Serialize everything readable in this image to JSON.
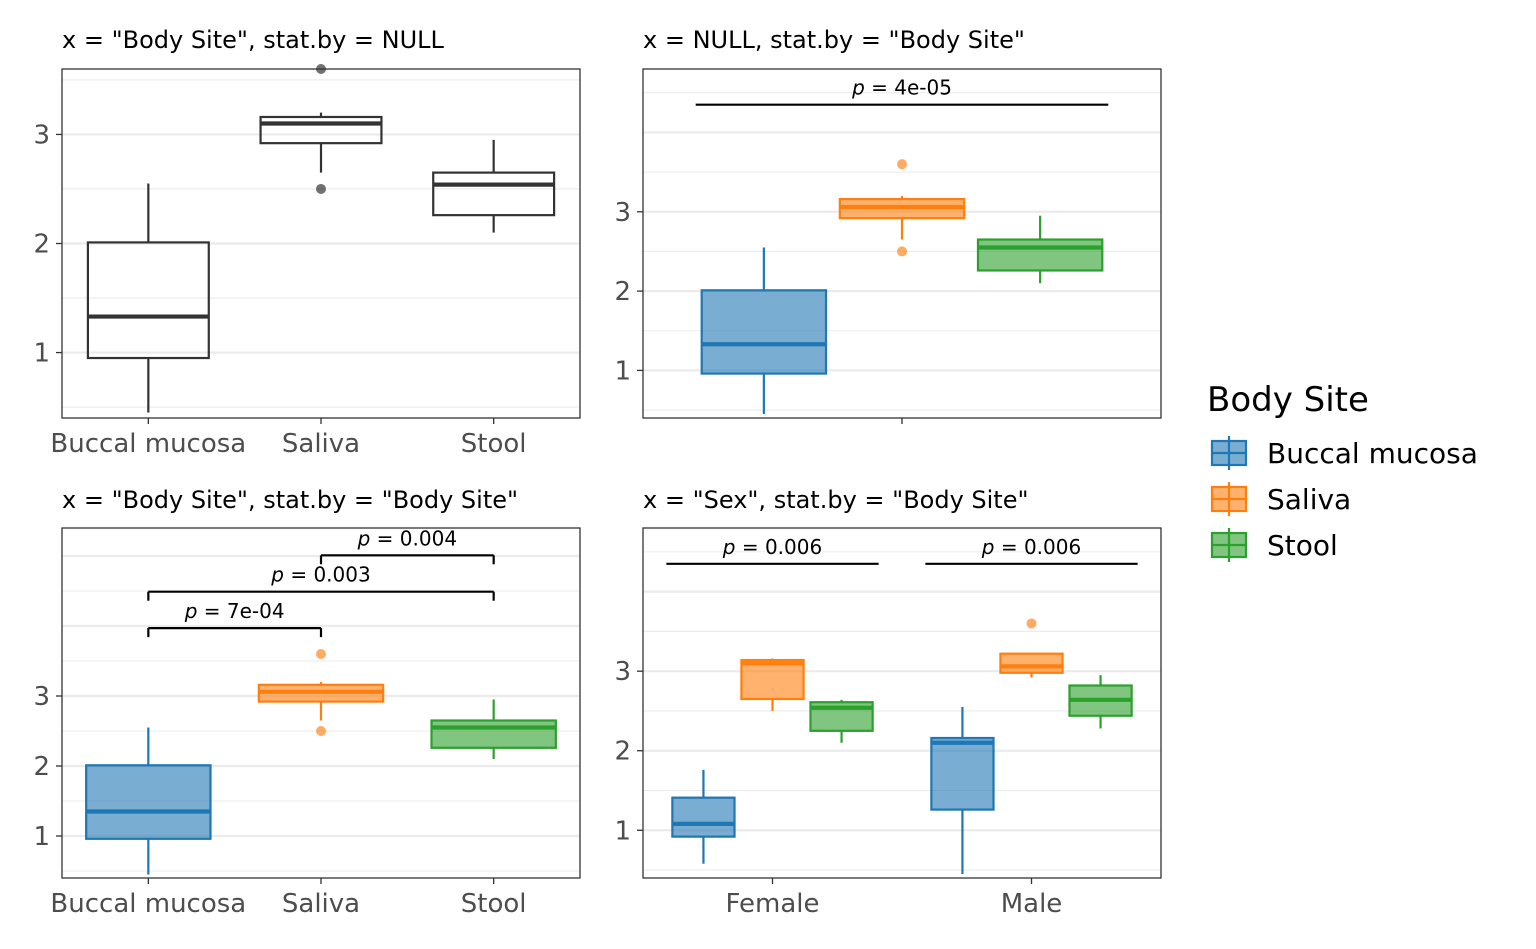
{
  "colors": {
    "Buccal mucosa": "#1f77b4",
    "Saliva": "#ff7f0e",
    "Stool": "#2ca02c",
    "neutral": "#333333",
    "grid": "#ebebeb",
    "border": "#333333"
  },
  "legend": {
    "title": "Body Site",
    "placement": "right",
    "items": [
      "Buccal mucosa",
      "Saliva",
      "Stool"
    ]
  },
  "chart_data": [
    {
      "type": "box",
      "title": "x = \"Body Site\", stat.by = NULL",
      "xlabel": "",
      "ylabel": "",
      "categories": [
        "Buccal mucosa",
        "Saliva",
        "Stool"
      ],
      "ylim": [
        0.4,
        3.6
      ],
      "yticks": [
        1,
        2,
        3
      ],
      "fill": "none",
      "boxes": [
        {
          "x": "Buccal mucosa",
          "group": "Buccal mucosa",
          "min": 0.45,
          "q1": 0.95,
          "median": 1.33,
          "q3": 2.01,
          "max": 2.55,
          "outliers": []
        },
        {
          "x": "Saliva",
          "group": "Saliva",
          "min": 2.65,
          "q1": 2.92,
          "median": 3.1,
          "q3": 3.16,
          "max": 3.2,
          "outliers": [
            3.6,
            2.5
          ]
        },
        {
          "x": "Stool",
          "group": "Stool",
          "min": 2.1,
          "q1": 2.26,
          "median": 2.54,
          "q3": 2.65,
          "max": 2.95,
          "outliers": []
        }
      ],
      "comparisons": []
    },
    {
      "type": "box",
      "title": "x = NULL, stat.by = \"Body Site\"",
      "xlabel": "",
      "ylabel": "",
      "categories": [
        ""
      ],
      "ylim": [
        0.4,
        4.8
      ],
      "yticks": [
        1,
        2,
        3
      ],
      "fill": "group",
      "boxes": [
        {
          "x": "",
          "group": "Buccal mucosa",
          "min": 0.45,
          "q1": 0.96,
          "median": 1.33,
          "q3": 2.01,
          "max": 2.55,
          "outliers": []
        },
        {
          "x": "",
          "group": "Saliva",
          "min": 2.65,
          "q1": 2.92,
          "median": 3.06,
          "q3": 3.16,
          "max": 3.2,
          "outliers": [
            3.6,
            2.5
          ]
        },
        {
          "x": "",
          "group": "Stool",
          "min": 2.1,
          "q1": 2.26,
          "median": 2.55,
          "q3": 2.65,
          "max": 2.95,
          "outliers": []
        }
      ],
      "comparisons": [
        {
          "from": [
            "",
            "Buccal mucosa"
          ],
          "to": [
            "",
            "Stool"
          ],
          "y": 4.35,
          "label": "4e-05",
          "type": "line"
        }
      ]
    },
    {
      "type": "box",
      "title": "x = \"Body Site\", stat.by = \"Body Site\"",
      "xlabel": "",
      "ylabel": "",
      "categories": [
        "Buccal mucosa",
        "Saliva",
        "Stool"
      ],
      "ylim": [
        0.4,
        5.4
      ],
      "yticks": [
        1,
        2,
        3
      ],
      "fill": "group",
      "boxes": [
        {
          "x": "Buccal mucosa",
          "group": "Buccal mucosa",
          "min": 0.45,
          "q1": 0.96,
          "median": 1.35,
          "q3": 2.01,
          "max": 2.55,
          "outliers": []
        },
        {
          "x": "Saliva",
          "group": "Saliva",
          "min": 2.65,
          "q1": 2.92,
          "median": 3.06,
          "q3": 3.16,
          "max": 3.2,
          "outliers": [
            3.6,
            2.5
          ]
        },
        {
          "x": "Stool",
          "group": "Stool",
          "min": 2.1,
          "q1": 2.26,
          "median": 2.55,
          "q3": 2.65,
          "max": 2.95,
          "outliers": []
        }
      ],
      "comparisons": [
        {
          "from": [
            "Buccal mucosa",
            ""
          ],
          "to": [
            "Saliva",
            ""
          ],
          "y": 3.97,
          "label": "7e-04",
          "type": "bracket"
        },
        {
          "from": [
            "Buccal mucosa",
            ""
          ],
          "to": [
            "Stool",
            ""
          ],
          "y": 4.49,
          "label": "0.003",
          "type": "bracket"
        },
        {
          "from": [
            "Saliva",
            ""
          ],
          "to": [
            "Stool",
            ""
          ],
          "y": 5.01,
          "label": "0.004",
          "type": "bracket"
        }
      ]
    },
    {
      "type": "box",
      "title": "x = \"Sex\", stat.by = \"Body Site\"",
      "xlabel": "",
      "ylabel": "",
      "categories": [
        "Female",
        "Male"
      ],
      "ylim": [
        0.4,
        4.8
      ],
      "yticks": [
        1,
        2,
        3
      ],
      "fill": "group",
      "boxes": [
        {
          "x": "Female",
          "group": "Buccal mucosa",
          "min": 0.58,
          "q1": 0.92,
          "median": 1.08,
          "q3": 1.41,
          "max": 1.76,
          "outliers": []
        },
        {
          "x": "Female",
          "group": "Saliva",
          "min": 2.5,
          "q1": 2.65,
          "median": 3.1,
          "q3": 3.14,
          "max": 3.16,
          "outliers": []
        },
        {
          "x": "Female",
          "group": "Stool",
          "min": 2.1,
          "q1": 2.25,
          "median": 2.54,
          "q3": 2.61,
          "max": 2.64,
          "outliers": []
        },
        {
          "x": "Male",
          "group": "Buccal mucosa",
          "min": 0.45,
          "q1": 1.26,
          "median": 2.1,
          "q3": 2.16,
          "max": 2.55,
          "outliers": []
        },
        {
          "x": "Male",
          "group": "Saliva",
          "min": 2.92,
          "q1": 2.98,
          "median": 3.06,
          "q3": 3.22,
          "max": 3.22,
          "outliers": [
            3.6
          ]
        },
        {
          "x": "Male",
          "group": "Stool",
          "min": 2.28,
          "q1": 2.44,
          "median": 2.64,
          "q3": 2.82,
          "max": 2.95,
          "outliers": []
        }
      ],
      "comparisons": [
        {
          "from": [
            "Female",
            "Buccal mucosa"
          ],
          "to": [
            "Female",
            "Stool"
          ],
          "y": 4.35,
          "label": "0.006",
          "type": "line"
        },
        {
          "from": [
            "Male",
            "Buccal mucosa"
          ],
          "to": [
            "Male",
            "Stool"
          ],
          "y": 4.35,
          "label": "0.006",
          "type": "line"
        }
      ]
    }
  ]
}
